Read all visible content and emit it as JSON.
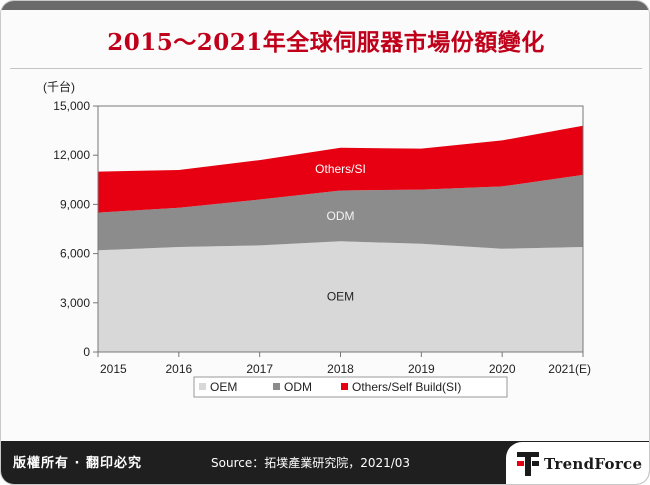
{
  "title": "2015～2021年全球伺服器市場份額變化",
  "chart_data": {
    "type": "area",
    "stacked": true,
    "unit_label": "(千台)",
    "categories": [
      "2015",
      "2016",
      "2017",
      "2018",
      "2019",
      "2020",
      "2021(E)"
    ],
    "series": [
      {
        "name": "OEM",
        "values": [
          6200,
          6400,
          6500,
          6750,
          6600,
          6300,
          6400
        ],
        "color": "#d8d8d8",
        "inline_label": "OEM"
      },
      {
        "name": "ODM",
        "values": [
          2300,
          2400,
          2800,
          3100,
          3300,
          3800,
          4400
        ],
        "color": "#8c8c8c",
        "inline_label": "ODM"
      },
      {
        "name": "Others/Self Build(SI)",
        "values": [
          2500,
          2300,
          2400,
          2600,
          2500,
          2800,
          3000
        ],
        "color": "#e60012",
        "inline_label": "Others/SI"
      }
    ],
    "ylim": [
      0,
      15000
    ],
    "yticks": [
      "0",
      "3,000",
      "6,000",
      "9,000",
      "12,000",
      "15,000"
    ],
    "legend_position": "bottom"
  },
  "footer": {
    "copyright": "版權所有 · 翻印必究",
    "source": "Source：拓墣產業研究院，2021/03",
    "logo_text": "TrendForce",
    "logo_colors": {
      "accent": "#e60012",
      "dark": "#1a1a1a"
    }
  }
}
